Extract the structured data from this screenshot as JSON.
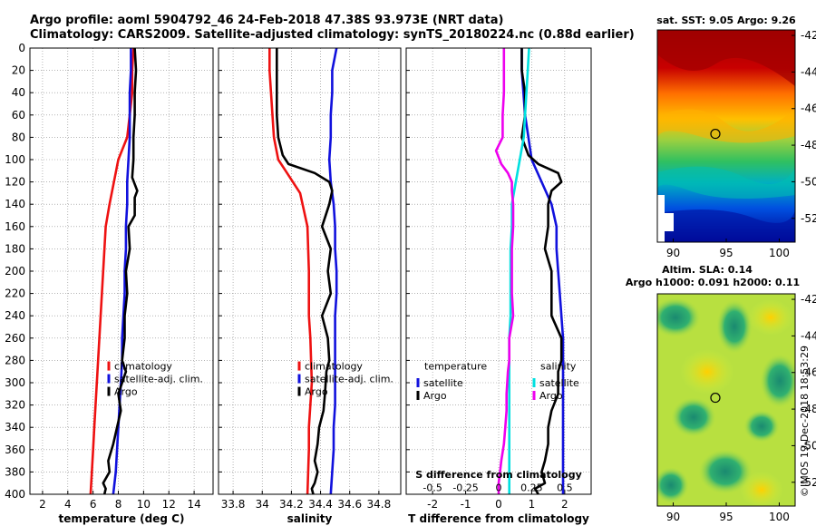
{
  "header": {
    "title_line1": "Argo profile: aoml 5904792_46 24-Feb-2018 47.38S 93.973E (NRT data)",
    "title_line2": "Climatology: CARS2009. Satellite-adjusted climatology: synTS_20180224.nc (0.88d earlier)"
  },
  "colors": {
    "climatology": "#ee1111",
    "satellite": "#1111dd",
    "argo": "#000000",
    "salinity_diff": "#ee00ee",
    "salinity_sat": "#00e0e0",
    "grid": "#888888"
  },
  "depth_axis": {
    "range": [
      0,
      400
    ],
    "ticks": [
      0,
      20,
      40,
      60,
      80,
      100,
      120,
      140,
      160,
      180,
      200,
      220,
      240,
      260,
      280,
      300,
      320,
      340,
      360,
      380,
      400
    ]
  },
  "chart_data": [
    {
      "type": "line",
      "title": "",
      "xlabel": "temperature (deg C)",
      "ylabel": "",
      "xlim": [
        1,
        15.5
      ],
      "xticks": [
        2,
        4,
        6,
        8,
        10,
        12,
        14
      ],
      "ylim": [
        400,
        0
      ],
      "legend": {
        "position": "bottom-right",
        "entries": [
          "climatology",
          "satellite-adj. clim.",
          "Argo"
        ]
      },
      "series": [
        {
          "name": "climatology",
          "color": "#ee1111",
          "x": [
            9.2,
            9.1,
            9.1,
            8.9,
            8.7,
            8.0,
            7.3,
            7.0,
            6.9,
            6.8,
            6.6,
            6.5,
            6.3,
            6.2,
            6.1,
            6.0,
            5.8
          ],
          "y": [
            0,
            20,
            40,
            60,
            80,
            100,
            140,
            160,
            180,
            200,
            240,
            260,
            300,
            320,
            340,
            360,
            400
          ]
        },
        {
          "name": "satellite-adj. clim.",
          "color": "#1111dd",
          "x": [
            9.0,
            9.0,
            8.9,
            8.9,
            8.9,
            8.8,
            8.7,
            8.7,
            8.6,
            8.6,
            8.5,
            8.5,
            8.4,
            8.3,
            8.3,
            8.2,
            8.1,
            8.0,
            7.9,
            7.8,
            7.6
          ],
          "y": [
            0,
            20,
            40,
            60,
            80,
            100,
            120,
            140,
            160,
            180,
            200,
            220,
            240,
            260,
            280,
            300,
            320,
            340,
            360,
            380,
            400
          ]
        },
        {
          "name": "Argo",
          "color": "#000000",
          "x": [
            9.3,
            9.4,
            9.3,
            9.3,
            9.2,
            9.2,
            9.1,
            9.3,
            9.5,
            9.3,
            9.3,
            8.8,
            8.9,
            8.6,
            8.7,
            8.5,
            8.5,
            8.3,
            8.6,
            8.0,
            8.2,
            7.9,
            7.6,
            7.2,
            7.3,
            6.8,
            7.0,
            6.9
          ],
          "y": [
            0,
            20,
            40,
            60,
            80,
            100,
            116,
            122,
            128,
            134,
            150,
            160,
            180,
            200,
            220,
            240,
            260,
            280,
            290,
            310,
            325,
            340,
            355,
            370,
            380,
            390,
            395,
            400
          ]
        }
      ]
    },
    {
      "type": "line",
      "title": "",
      "xlabel": "salinity",
      "ylabel": "",
      "xlim": [
        33.7,
        34.95
      ],
      "xticks": [
        33.8,
        34,
        34.2,
        34.4,
        34.6,
        34.8
      ],
      "xtick_labels": [
        "33.8",
        "34",
        "34.2",
        "34.4",
        "34.6",
        "34.8"
      ],
      "ylim": [
        400,
        0
      ],
      "legend": {
        "position": "bottom-right",
        "entries": [
          "climatology",
          "satellite-adj. clim.",
          "Argo"
        ]
      },
      "series": [
        {
          "name": "climatology",
          "color": "#ee1111",
          "x": [
            34.05,
            34.05,
            34.06,
            34.07,
            34.08,
            34.11,
            34.16,
            34.26,
            34.31,
            34.32,
            34.32,
            34.33,
            34.34,
            34.33,
            34.32,
            34.32,
            34.31
          ],
          "y": [
            0,
            20,
            40,
            60,
            80,
            100,
            110,
            130,
            160,
            200,
            240,
            260,
            300,
            320,
            340,
            360,
            400
          ]
        },
        {
          "name": "satellite-adj. clim.",
          "color": "#1111dd",
          "x": [
            34.51,
            34.48,
            34.48,
            34.47,
            34.47,
            34.46,
            34.47,
            34.49,
            34.5,
            34.5,
            34.51,
            34.51,
            34.5,
            34.5,
            34.5,
            34.5,
            34.5,
            34.49,
            34.49,
            34.48,
            34.47
          ],
          "y": [
            0,
            20,
            40,
            60,
            80,
            100,
            120,
            140,
            160,
            180,
            200,
            220,
            240,
            260,
            280,
            300,
            320,
            340,
            360,
            380,
            400
          ]
        },
        {
          "name": "Argo",
          "color": "#000000",
          "x": [
            34.1,
            34.1,
            34.1,
            34.1,
            34.11,
            34.14,
            34.18,
            34.36,
            34.46,
            34.48,
            34.46,
            34.41,
            34.47,
            34.45,
            34.47,
            34.41,
            34.45,
            34.46,
            34.44,
            34.43,
            34.42,
            34.39,
            34.38,
            34.36,
            34.38,
            34.36,
            34.34,
            34.35
          ],
          "y": [
            0,
            20,
            40,
            60,
            80,
            96,
            104,
            112,
            120,
            128,
            140,
            160,
            180,
            200,
            220,
            240,
            260,
            280,
            290,
            310,
            325,
            340,
            355,
            370,
            380,
            390,
            395,
            400
          ]
        }
      ]
    },
    {
      "type": "line",
      "title": "",
      "xlabel": "T difference from climatology",
      "ylabel": "",
      "xlim": [
        -2.8,
        2.8
      ],
      "xticks": [
        -2,
        -1,
        0,
        1,
        2
      ],
      "ylim": [
        400,
        0
      ],
      "secondary_axis": {
        "label": "S difference from climatology",
        "ticks": [
          -0.5,
          -0.25,
          0,
          0.25,
          0.5
        ],
        "tick_labels": [
          "-0.5",
          "-0.25",
          "0",
          "0.25",
          "0.5"
        ]
      },
      "legend": {
        "position": "bottom",
        "groups": [
          {
            "title": "temperature",
            "entries": [
              "satellite",
              "Argo"
            ]
          },
          {
            "title": "salinity",
            "entries": [
              "satellite",
              "Argo"
            ]
          }
        ]
      },
      "series": [
        {
          "name": "temperature satellite",
          "color": "#1111dd",
          "x": [
            0.7,
            0.7,
            0.75,
            0.8,
            0.9,
            1.0,
            1.3,
            1.6,
            1.75,
            1.75,
            1.8,
            1.85,
            1.9,
            1.95,
            1.95,
            1.95,
            1.95,
            1.95,
            1.95,
            1.95,
            1.95
          ],
          "y": [
            0,
            20,
            40,
            60,
            80,
            100,
            120,
            140,
            160,
            180,
            200,
            220,
            240,
            260,
            280,
            300,
            320,
            340,
            360,
            380,
            400
          ]
        },
        {
          "name": "temperature Argo",
          "color": "#000000",
          "x": [
            0.7,
            0.7,
            0.8,
            0.8,
            0.7,
            0.9,
            1.2,
            1.8,
            1.9,
            1.6,
            1.5,
            1.5,
            1.4,
            1.6,
            1.6,
            1.6,
            1.9,
            1.9,
            1.8,
            1.8,
            1.6,
            1.5,
            1.5,
            1.4,
            1.3,
            1.4,
            1.1,
            1.2
          ],
          "y": [
            0,
            20,
            40,
            60,
            80,
            96,
            104,
            112,
            120,
            128,
            140,
            160,
            180,
            200,
            220,
            240,
            260,
            280,
            290,
            310,
            325,
            340,
            355,
            370,
            380,
            390,
            395,
            400
          ]
        },
        {
          "name": "salinity satellite",
          "color": "#00e0e0",
          "x": [
            0.23,
            0.22,
            0.21,
            0.2,
            0.19,
            0.16,
            0.13,
            0.1,
            0.1,
            0.09,
            0.09,
            0.09,
            0.09,
            0.08,
            0.08,
            0.08,
            0.08,
            0.08,
            0.08,
            0.08,
            0.08
          ],
          "y": [
            0,
            20,
            40,
            60,
            80,
            100,
            120,
            140,
            160,
            180,
            200,
            220,
            240,
            260,
            280,
            300,
            320,
            340,
            360,
            380,
            400
          ]
        },
        {
          "name": "salinity Argo",
          "color": "#ee00ee",
          "x": [
            0.04,
            0.04,
            0.04,
            0.03,
            0.03,
            -0.02,
            0.02,
            0.07,
            0.1,
            0.1,
            0.11,
            0.11,
            0.1,
            0.1,
            0.1,
            0.11,
            0.08,
            0.08,
            0.07,
            0.06,
            0.06,
            0.05,
            0.04,
            0.02,
            0.01,
            0.0,
            0.0,
            0.0
          ],
          "y": [
            0,
            20,
            40,
            60,
            80,
            92,
            104,
            112,
            120,
            128,
            140,
            160,
            180,
            200,
            220,
            240,
            260,
            280,
            290,
            310,
            325,
            340,
            355,
            370,
            380,
            390,
            395,
            400
          ]
        }
      ]
    },
    {
      "type": "heatmap",
      "title": "sat. SST: 9.05 Argo: 9.26",
      "xlabel": "",
      "ylabel": "",
      "xlim": [
        88.5,
        101.5
      ],
      "ylim": [
        -53.3,
        -41.7
      ],
      "xticks": [
        90,
        95,
        100
      ],
      "yticks": [
        -42,
        -44,
        -46,
        -48,
        -50,
        -52
      ],
      "marker": {
        "lon": 93.973,
        "lat": -47.38
      },
      "colorscale": "jet",
      "field": "sea surface temperature"
    },
    {
      "type": "heatmap",
      "title": "Altim. SLA: 0.14",
      "subtitle": "Argo h1000: 0.091 h2000: 0.11",
      "xlabel": "",
      "ylabel": "",
      "xlim": [
        88.5,
        101.5
      ],
      "ylim": [
        -53.3,
        -41.7
      ],
      "xticks": [
        90,
        95,
        100
      ],
      "yticks": [
        -42,
        -44,
        -46,
        -48,
        -50,
        -52
      ],
      "marker": {
        "lon": 93.973,
        "lat": -47.38
      },
      "colorscale": "jet",
      "field": "sea level anomaly"
    }
  ],
  "watermark": "©IMOS 19-Dec-2018 18:53:29"
}
